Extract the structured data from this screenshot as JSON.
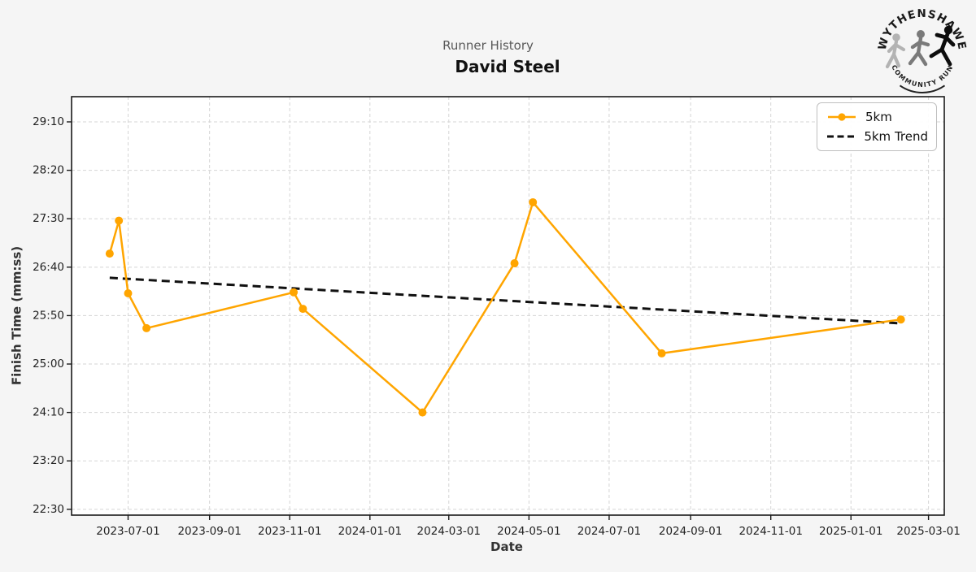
{
  "header": {
    "subtitle": "Runner History",
    "title": "David Steel"
  },
  "logo": {
    "arc_top": "WYTHENSHAWE",
    "arc_bottom": "COMMUNITY RUN"
  },
  "chart_data": {
    "type": "line",
    "title": "David Steel",
    "subtitle": "Runner History",
    "xlabel": "Date",
    "ylabel": "Finish Time (mm:ss)",
    "grid": true,
    "legend_position": "upper right",
    "x_ticks": [
      "2023-07-01",
      "2023-09-01",
      "2023-11-01",
      "2024-01-01",
      "2024-03-01",
      "2024-05-01",
      "2024-07-01",
      "2024-09-01",
      "2024-11-01",
      "2025-01-01",
      "2025-03-01"
    ],
    "y_ticks": [
      "29:10",
      "28:20",
      "27:30",
      "26:40",
      "25:50",
      "25:00",
      "24:10",
      "23:20",
      "22:30"
    ],
    "xlim": [
      "2023-05-19",
      "2025-03-13"
    ],
    "ylim": [
      "22:24",
      "29:36"
    ],
    "colors": {
      "series_5km": "#FFA500",
      "trend": "#111111",
      "figure_bg": "#f5f5f5",
      "plot_bg": "#ffffff",
      "grid": "#d5d5d5",
      "spine": "#1a1a1a"
    },
    "series": [
      {
        "name": "5km",
        "style": "solid-with-markers",
        "color": "#FFA500",
        "points": [
          [
            "2023-06-17",
            "26:54"
          ],
          [
            "2023-06-24",
            "27:28"
          ],
          [
            "2023-07-01",
            "26:13"
          ],
          [
            "2023-07-15",
            "25:37"
          ],
          [
            "2023-11-04",
            "26:14"
          ],
          [
            "2023-11-11",
            "25:57"
          ],
          [
            "2024-02-10",
            "24:10"
          ],
          [
            "2024-04-20",
            "26:44"
          ],
          [
            "2024-05-04",
            "27:47"
          ],
          [
            "2024-08-10",
            "25:11"
          ],
          [
            "2025-02-08",
            "25:46"
          ]
        ]
      },
      {
        "name": "5km Trend",
        "style": "dashed",
        "color": "#111111",
        "points": [
          [
            "2023-06-17",
            "26:29"
          ],
          [
            "2025-02-08",
            "25:42"
          ]
        ]
      }
    ]
  }
}
